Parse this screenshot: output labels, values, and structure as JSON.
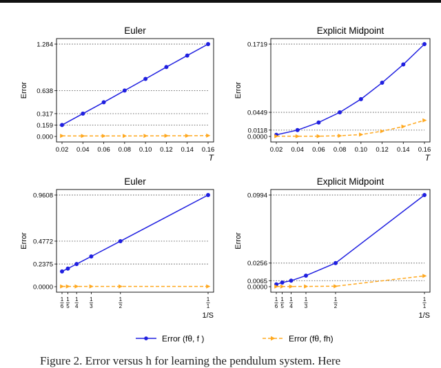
{
  "caption": "Figure 2. Error versus h for learning the pendulum system. Here",
  "legend": [
    {
      "label": "Error (fθ, f )",
      "color": "#1f1fe0",
      "style": "solid",
      "marker": "circle"
    },
    {
      "label": "Error (fθ, fh)",
      "color": "#ffa81e",
      "style": "dashed",
      "marker": "triangle-right"
    }
  ],
  "chart_data": [
    {
      "type": "line",
      "title": "Euler",
      "xlabel": "T",
      "ylabel": "Error",
      "x": [
        0.02,
        0.04,
        0.06,
        0.08,
        0.1,
        0.12,
        0.14,
        0.16
      ],
      "xticks": [
        "0.02",
        "0.04",
        "0.06",
        "0.08",
        "0.10",
        "0.12",
        "0.14",
        "0.16"
      ],
      "yticks": [
        0.0,
        0.159,
        0.317,
        0.638,
        1.284
      ],
      "ytick_labels": [
        "0.000",
        "0.159",
        "0.317",
        "0.638",
        "1.284"
      ],
      "xlim": [
        0.02,
        0.16
      ],
      "ylim": [
        0.0,
        1.284
      ],
      "series": [
        {
          "name": "Error (fθ, f )",
          "values": [
            0.159,
            0.317,
            0.475,
            0.638,
            0.8,
            0.965,
            1.125,
            1.284
          ]
        },
        {
          "name": "Error (fθ, fh)",
          "values": [
            0.008,
            0.007,
            0.007,
            0.007,
            0.008,
            0.009,
            0.01,
            0.012
          ]
        }
      ]
    },
    {
      "type": "line",
      "title": "Explicit Midpoint",
      "xlabel": "T",
      "ylabel": "Error",
      "x": [
        0.02,
        0.04,
        0.06,
        0.08,
        0.1,
        0.12,
        0.14,
        0.16
      ],
      "xticks": [
        "0.02",
        "0.04",
        "0.06",
        "0.08",
        "0.10",
        "0.12",
        "0.14",
        "0.16"
      ],
      "yticks": [
        0.0,
        0.0118,
        0.0449,
        0.1719
      ],
      "ytick_labels": [
        "0.0000",
        "0.0118",
        "0.0449",
        "0.1719"
      ],
      "xlim": [
        0.02,
        0.16
      ],
      "ylim": [
        0.0,
        0.1719
      ],
      "series": [
        {
          "name": "Error (fθ, f )",
          "values": [
            0.003,
            0.0118,
            0.026,
            0.0449,
            0.0695,
            0.1,
            0.134,
            0.1719
          ]
        },
        {
          "name": "Error (fθ, fh)",
          "values": [
            0.0005,
            0.0004,
            0.0005,
            0.0013,
            0.0035,
            0.0098,
            0.0185,
            0.03
          ]
        }
      ]
    },
    {
      "type": "line",
      "title": "Euler",
      "xlabel": "1/S",
      "ylabel": "Error",
      "x": [
        0.16667,
        0.2,
        0.25,
        0.33333,
        0.5,
        1.0
      ],
      "xticks": [
        "1/6",
        "1/5",
        "1/4",
        "1/3",
        "1/2",
        "1/1"
      ],
      "yticks": [
        0.0,
        0.2375,
        0.4772,
        0.9608
      ],
      "ytick_labels": [
        "0.0000",
        "0.2375",
        "0.4772",
        "0.9608"
      ],
      "xlim": [
        0.16667,
        1.0
      ],
      "ylim": [
        0.0,
        0.9608
      ],
      "series": [
        {
          "name": "Error (fθ, f )",
          "values": [
            0.16,
            0.19,
            0.2375,
            0.317,
            0.4772,
            0.9608
          ]
        },
        {
          "name": "Error (fθ, fh)",
          "values": [
            0.003,
            0.003,
            0.003,
            0.003,
            0.003,
            0.003
          ]
        }
      ]
    },
    {
      "type": "line",
      "title": "Explicit Midpoint",
      "xlabel": "1/S",
      "ylabel": "Error",
      "x": [
        0.16667,
        0.2,
        0.25,
        0.33333,
        0.5,
        1.0
      ],
      "xticks": [
        "1/6",
        "1/5",
        "1/4",
        "1/3",
        "1/2",
        "1/1"
      ],
      "yticks": [
        0.0,
        0.0065,
        0.0256,
        0.0994
      ],
      "ytick_labels": [
        "0.0000",
        "0.0065",
        "0.0256",
        "0.0994"
      ],
      "xlim": [
        0.16667,
        1.0
      ],
      "ylim": [
        0.0,
        0.0994
      ],
      "series": [
        {
          "name": "Error (fθ, f )",
          "values": [
            0.0025,
            0.0045,
            0.0065,
            0.012,
            0.0256,
            0.0994
          ]
        },
        {
          "name": "Error (fθ, fh)",
          "values": [
            0.0002,
            0.0002,
            0.0002,
            0.0003,
            0.0005,
            0.0117
          ]
        }
      ]
    }
  ]
}
